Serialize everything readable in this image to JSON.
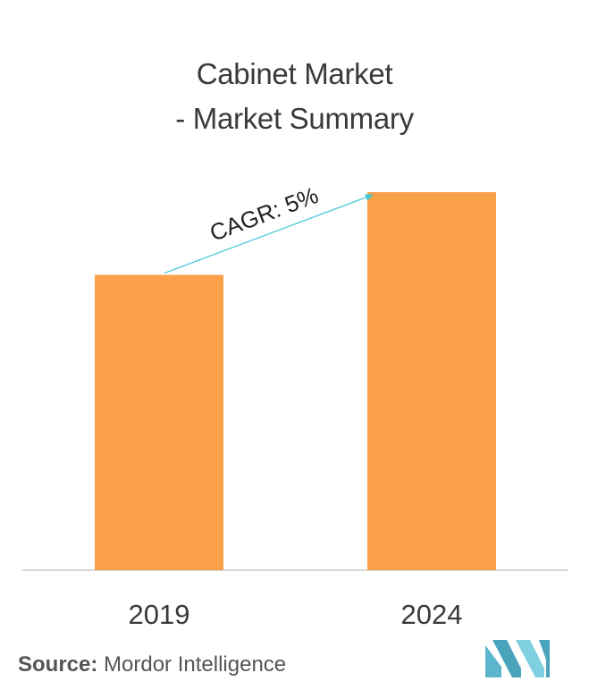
{
  "title_line1": "Cabinet Market",
  "title_line2": "- Market Summary",
  "source": {
    "label": "Source:",
    "text": "Mordor Intelligence"
  },
  "colors": {
    "bar": "#f9a049",
    "arrow": "#3ec6d4",
    "axis": "#cccccc",
    "text": "#3a3a3a",
    "logo": "#6cbfd4"
  },
  "icons": [
    "mordor-intelligence-logo"
  ],
  "chart_data": {
    "type": "bar",
    "categories": [
      "2019",
      "2024"
    ],
    "values": [
      1.0,
      1.28
    ],
    "ylim": [
      0,
      1.38
    ],
    "grid": false,
    "annotation": "CAGR: 5%"
  }
}
